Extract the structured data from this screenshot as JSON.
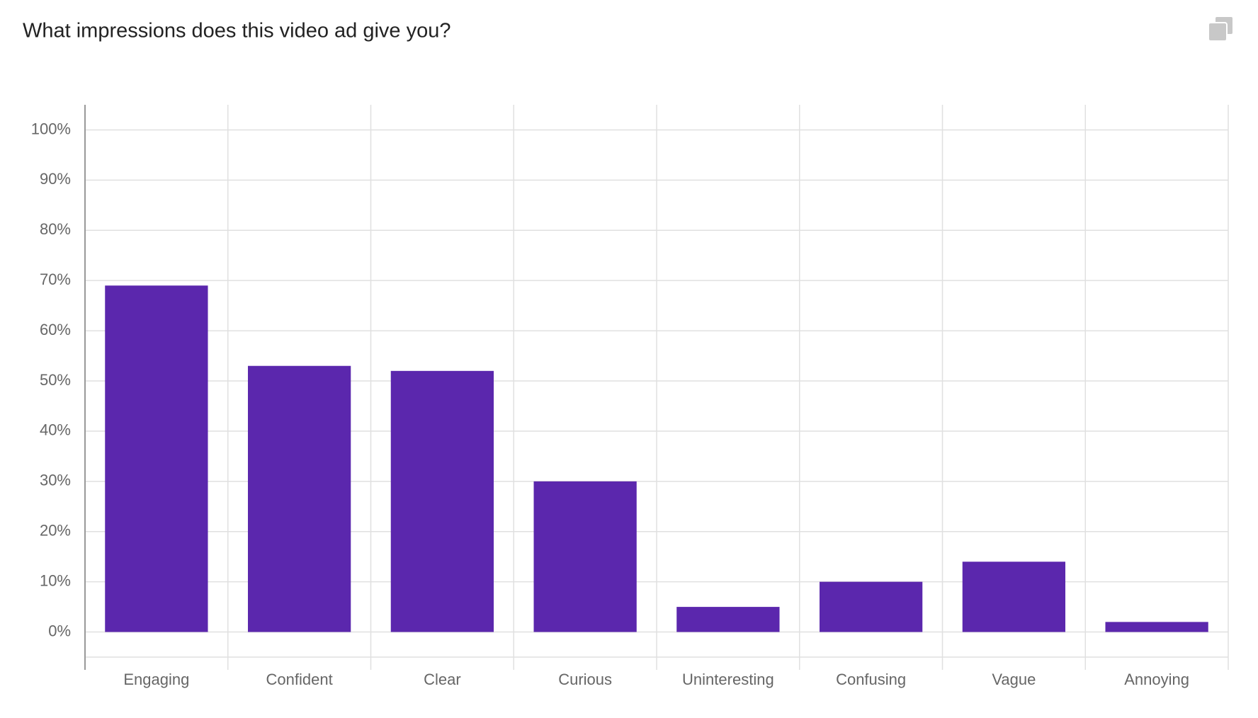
{
  "chart_data": {
    "type": "bar",
    "title": "What impressions does this video ad give you?",
    "categories": [
      "Engaging",
      "Confident",
      "Clear",
      "Curious",
      "Uninteresting",
      "Confusing",
      "Vague",
      "Annoying"
    ],
    "values": [
      69,
      53,
      52,
      30,
      5,
      10,
      14,
      2
    ],
    "color": "#5b27ad",
    "ylim": [
      -5,
      105
    ],
    "yticks": [
      {
        "value": 0,
        "label": "0%"
      },
      {
        "value": 10,
        "label": "10%"
      },
      {
        "value": 20,
        "label": "20%"
      },
      {
        "value": 30,
        "label": "30%"
      },
      {
        "value": 40,
        "label": "40%"
      },
      {
        "value": 50,
        "label": "50%"
      },
      {
        "value": 60,
        "label": "60%"
      },
      {
        "value": 70,
        "label": "70%"
      },
      {
        "value": 80,
        "label": "80%"
      },
      {
        "value": 90,
        "label": "90%"
      },
      {
        "value": 100,
        "label": "100%"
      }
    ],
    "grid": true
  }
}
